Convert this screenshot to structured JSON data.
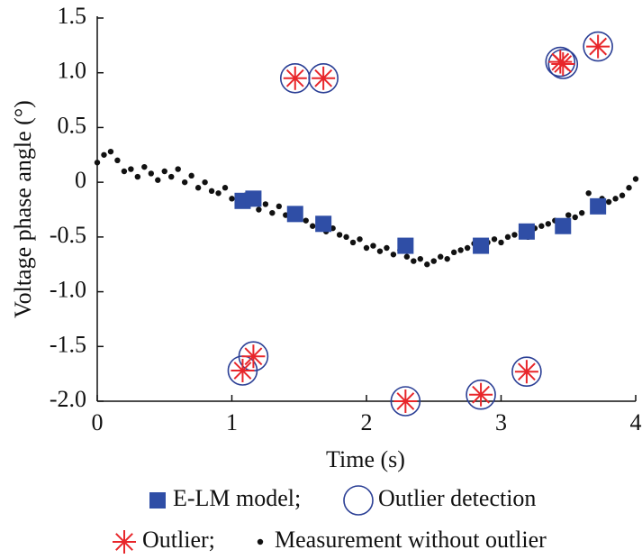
{
  "chart_data": {
    "type": "scatter",
    "xlabel": "Time (s)",
    "ylabel": "Voltage phase angle (°)",
    "xlim": [
      0,
      4
    ],
    "ylim": [
      -2,
      1.5
    ],
    "xticks": [
      0,
      1,
      2,
      3,
      4
    ],
    "yticks": [
      1.5,
      {
        "value": 1,
        "label": "1.0"
      },
      0.5,
      0,
      -0.5,
      {
        "value": -1,
        "label": "-1.0"
      },
      -1.5,
      {
        "value": -2,
        "label": "-2.0"
      }
    ],
    "series": [
      {
        "name": "E-LM model;",
        "color": "#2f4ea6",
        "marker": "square",
        "x": [
          1.08,
          1.16,
          1.47,
          1.68,
          2.29,
          2.85,
          3.19,
          3.46,
          3.72
        ],
        "values": [
          -0.17,
          -0.15,
          -0.29,
          -0.38,
          -0.58,
          -0.58,
          -0.45,
          -0.4,
          -0.22
        ]
      },
      {
        "name": "Outlier detection",
        "color": "#2b3f95",
        "marker": "circle",
        "x": [
          1.47,
          1.68,
          3.44,
          3.46,
          3.72,
          1.08,
          1.16,
          2.29,
          2.85,
          3.19
        ],
        "values": [
          0.95,
          0.95,
          1.1,
          1.08,
          1.24,
          -1.72,
          -1.59,
          -2.0,
          -1.94,
          -1.73
        ]
      },
      {
        "name": "Outlier;",
        "color": "#e8262a",
        "marker": "star",
        "x": [
          1.47,
          1.68,
          3.44,
          3.46,
          3.72,
          1.08,
          1.16,
          2.29,
          2.85,
          3.19
        ],
        "values": [
          0.95,
          0.95,
          1.1,
          1.08,
          1.24,
          -1.72,
          -1.59,
          -2.0,
          -1.94,
          -1.73
        ]
      },
      {
        "name": "Measurement without outlier",
        "color": "#111111",
        "marker": "dot",
        "x": [
          0,
          0.05,
          0.1,
          0.15,
          0.2,
          0.25,
          0.3,
          0.35,
          0.4,
          0.45,
          0.5,
          0.55,
          0.6,
          0.65,
          0.7,
          0.75,
          0.8,
          0.85,
          0.9,
          0.95,
          1.0,
          1.05,
          1.1,
          1.15,
          1.2,
          1.25,
          1.3,
          1.35,
          1.4,
          1.45,
          1.5,
          1.55,
          1.6,
          1.65,
          1.7,
          1.75,
          1.8,
          1.85,
          1.9,
          1.95,
          2.0,
          2.05,
          2.1,
          2.15,
          2.2,
          2.25,
          2.3,
          2.35,
          2.4,
          2.45,
          2.5,
          2.55,
          2.6,
          2.65,
          2.7,
          2.75,
          2.8,
          2.85,
          2.9,
          2.95,
          3.0,
          3.05,
          3.1,
          3.15,
          3.2,
          3.25,
          3.3,
          3.35,
          3.4,
          3.45,
          3.5,
          3.55,
          3.6,
          3.65,
          3.7,
          3.75,
          3.8,
          3.85,
          3.9,
          3.95,
          4.0
        ],
        "values": [
          0.18,
          0.25,
          0.28,
          0.2,
          0.1,
          0.12,
          0.05,
          0.14,
          0.08,
          0.02,
          0.1,
          0.05,
          0.12,
          0.0,
          0.06,
          -0.05,
          0.0,
          -0.08,
          -0.1,
          -0.05,
          -0.15,
          -0.2,
          -0.12,
          -0.18,
          -0.25,
          -0.2,
          -0.28,
          -0.22,
          -0.3,
          -0.27,
          -0.32,
          -0.35,
          -0.4,
          -0.36,
          -0.45,
          -0.42,
          -0.48,
          -0.5,
          -0.55,
          -0.52,
          -0.6,
          -0.58,
          -0.63,
          -0.6,
          -0.66,
          -0.62,
          -0.68,
          -0.72,
          -0.7,
          -0.75,
          -0.72,
          -0.68,
          -0.7,
          -0.64,
          -0.62,
          -0.6,
          -0.56,
          -0.6,
          -0.55,
          -0.52,
          -0.55,
          -0.5,
          -0.48,
          -0.45,
          -0.5,
          -0.42,
          -0.4,
          -0.38,
          -0.35,
          -0.38,
          -0.3,
          -0.32,
          -0.28,
          -0.1,
          -0.2,
          -0.15,
          -0.18,
          -0.15,
          -0.12,
          -0.05,
          0.03
        ]
      }
    ]
  }
}
